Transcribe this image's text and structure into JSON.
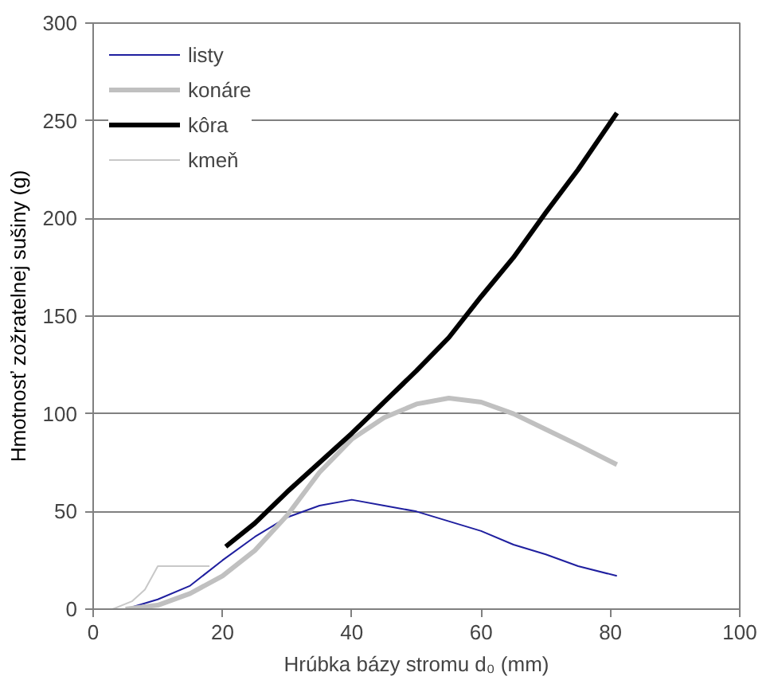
{
  "chart_data": {
    "type": "line",
    "xlabel": "Hrúbka bázy stromu d₀ (mm)",
    "ylabel": "Hmotnosť zožratelnej sušiny (g)",
    "xlim": [
      0,
      100
    ],
    "xticks": [
      0,
      20,
      40,
      60,
      80,
      100
    ],
    "ylim": [
      0,
      300
    ],
    "yticks": [
      0,
      50,
      100,
      150,
      200,
      250,
      300
    ],
    "grid": "y",
    "legend": "top left",
    "marker": "none",
    "line_style": "solid",
    "series": [
      {
        "name": "listy",
        "color": "#1f1f9f",
        "x": [
          6,
          10,
          15,
          20,
          25,
          30,
          35,
          40,
          45,
          50,
          55,
          60,
          65,
          70,
          75,
          81
        ],
        "values": [
          1,
          5,
          12,
          25,
          37,
          47,
          53,
          56,
          53,
          50,
          45,
          40,
          33,
          28,
          22,
          17
        ]
      },
      {
        "name": "konáre",
        "color": "#c0c0c0",
        "x": [
          5,
          10,
          15,
          20,
          25,
          30,
          35,
          40,
          45,
          50,
          55,
          60,
          65,
          70,
          75,
          81
        ],
        "values": [
          0,
          2,
          8,
          17,
          30,
          48,
          70,
          87,
          98,
          105,
          108,
          106,
          100,
          92,
          84,
          74
        ]
      },
      {
        "name": "kôra",
        "color": "#000000",
        "x": [
          20.5,
          25,
          30,
          35,
          40,
          45,
          50,
          55,
          60,
          65,
          70,
          75,
          81
        ],
        "values": [
          32,
          44,
          60,
          75,
          90,
          106,
          122,
          139,
          160,
          180,
          203,
          225,
          254
        ]
      },
      {
        "name": "kmeň",
        "color": "#c8c8c8",
        "x": [
          3,
          6,
          8,
          10,
          18
        ],
        "values": [
          0,
          4,
          10,
          22,
          22
        ]
      }
    ]
  }
}
